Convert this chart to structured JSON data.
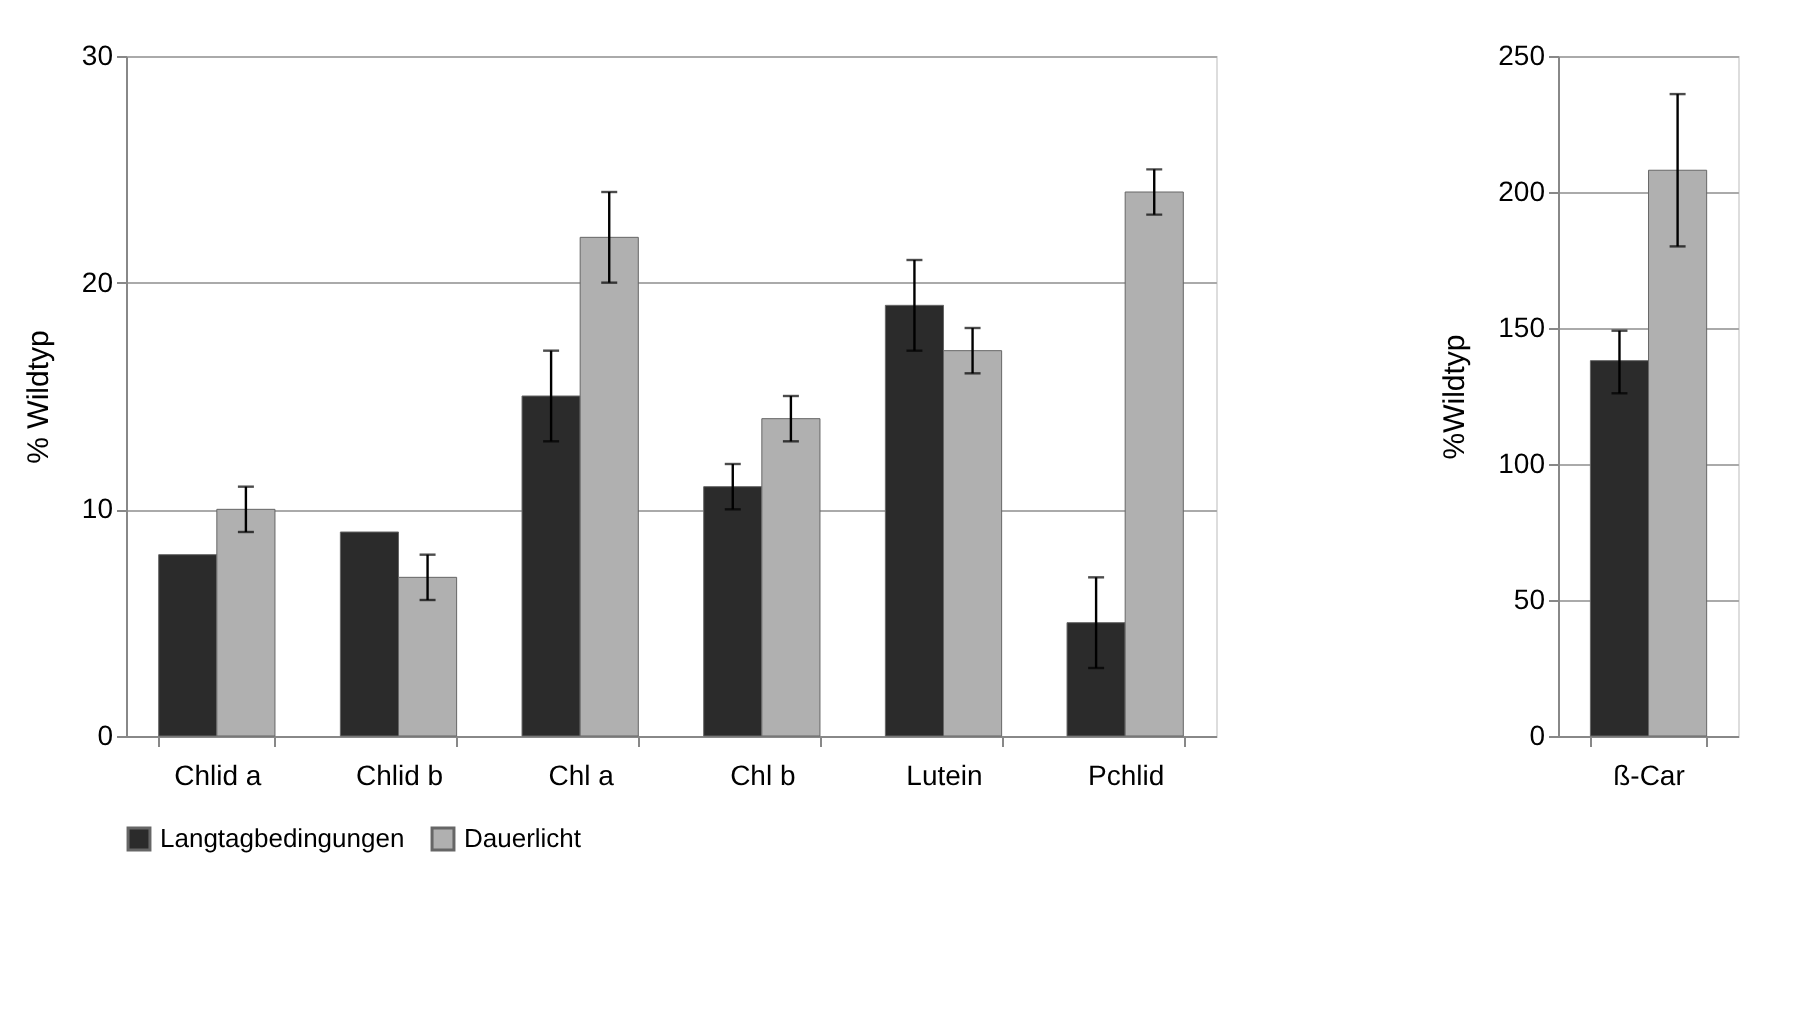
{
  "chart_data": [
    {
      "type": "bar",
      "categories": [
        "Chlid a",
        "Chlid b",
        "Chl a",
        "Chl b",
        "Lutein",
        "Pchlid"
      ],
      "ylabel": "% Wildtyp",
      "ylim": [
        0,
        30
      ],
      "yticks": [
        0,
        10,
        20,
        30
      ],
      "grid": "y",
      "legend": "bottom",
      "series": [
        {
          "name": "Langtagbedingungen",
          "color": "#2b2b2b",
          "values": [
            8,
            9,
            15,
            11,
            19,
            5
          ],
          "errors": [
            null,
            null,
            2,
            1,
            2,
            2
          ]
        },
        {
          "name": "Dauerlicht",
          "color": "#b0b0b0",
          "values": [
            10,
            7,
            22,
            14,
            17,
            24
          ],
          "errors": [
            1,
            1,
            2,
            1,
            1,
            1
          ]
        }
      ]
    },
    {
      "type": "bar",
      "categories": [
        "ß-Car"
      ],
      "ylabel": "%Wildtyp",
      "ylim": [
        0,
        250
      ],
      "yticks": [
        0,
        50,
        100,
        150,
        200,
        250
      ],
      "grid": "y",
      "series": [
        {
          "color": "#2b2b2b",
          "values": [
            138
          ],
          "errors": [
            [
              126,
              149
            ]
          ]
        },
        {
          "color": "#b0b0b0",
          "values": [
            208
          ],
          "errors": [
            [
              180,
              236
            ]
          ]
        }
      ]
    }
  ]
}
